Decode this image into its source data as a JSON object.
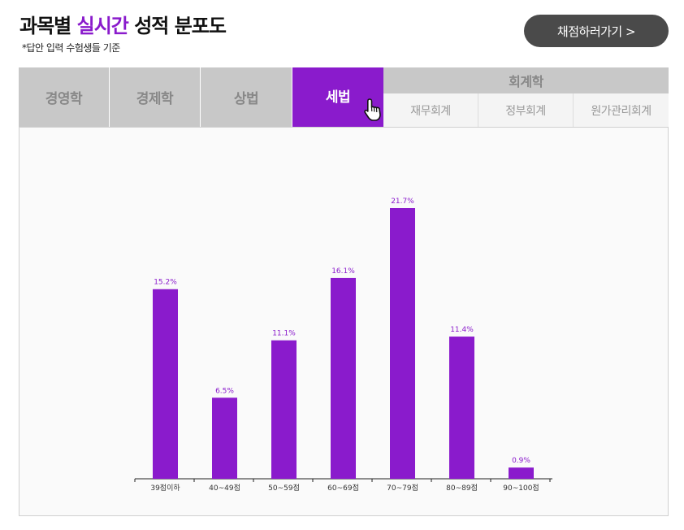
{
  "header": {
    "title_prefix": "과목별 ",
    "title_accent": "실시간",
    "title_suffix": " 성적 분포도",
    "subtitle": "*답안 입력 수험생들 기준",
    "grade_button": "채점하러가기 >"
  },
  "tabs": [
    {
      "label": "경영학",
      "active": false
    },
    {
      "label": "경제학",
      "active": false
    },
    {
      "label": "상법",
      "active": false
    },
    {
      "label": "세법",
      "active": true
    }
  ],
  "accounting": {
    "label": "회계학",
    "subtabs": [
      "재무회계",
      "정부회계",
      "원가관리회계"
    ]
  },
  "colors": {
    "accent": "#8a1bcc",
    "tab_bg": "#c8c8c8",
    "button_bg": "#4a4a4a"
  },
  "icons": {
    "pointer": "hand-pointer-icon"
  },
  "chart_data": {
    "type": "bar",
    "title": "",
    "xlabel": "",
    "ylabel": "",
    "categories": [
      "39점이하",
      "40~49점",
      "50~59점",
      "60~69점",
      "70~79점",
      "80~89점",
      "90~100점"
    ],
    "values": [
      15.2,
      6.5,
      11.1,
      16.1,
      21.7,
      11.4,
      0.9
    ],
    "value_labels": [
      "15.2%",
      "6.5%",
      "11.1%",
      "16.1%",
      "21.7%",
      "11.4%",
      "0.9%"
    ],
    "ylim": [
      0,
      21.7
    ],
    "grid": false,
    "bar_color": "#8a1bcc"
  }
}
